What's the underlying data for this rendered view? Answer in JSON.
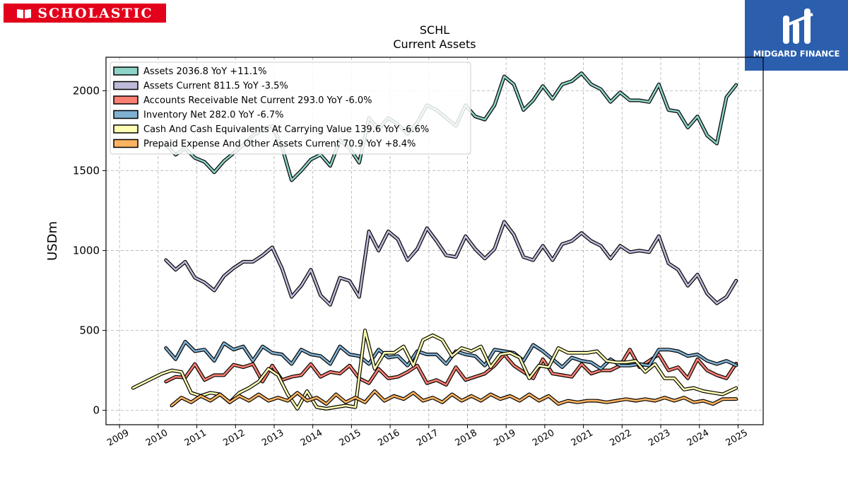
{
  "branding": {
    "left_logo": "SCHOLASTIC",
    "right_logo": "MIDGARD FINANCE"
  },
  "chart_data": {
    "type": "line",
    "title": "SCHL",
    "subtitle": "Current  Assets",
    "ylabel": "USDm",
    "xlabel": "",
    "ylim": [
      -90,
      2210
    ],
    "xlim": [
      2008.65,
      2025.65
    ],
    "y_ticks": [
      0,
      500,
      1000,
      1500,
      2000
    ],
    "x_ticks": [
      2009,
      2010,
      2011,
      2012,
      2013,
      2014,
      2015,
      2016,
      2017,
      2018,
      2019,
      2020,
      2021,
      2022,
      2023,
      2024,
      2025
    ],
    "grid": true,
    "legend_position": "top-left",
    "series": [
      {
        "name": "Assets  2036.8 YoY +11.1%",
        "color": "#8dd3c7",
        "x": [
          2010.2,
          2010.45,
          2010.7,
          2010.95,
          2011.2,
          2011.45,
          2011.7,
          2011.95,
          2012.2,
          2012.45,
          2012.7,
          2012.95,
          2013.2,
          2013.45,
          2013.7,
          2013.95,
          2014.2,
          2014.45,
          2014.7,
          2014.95,
          2015.2,
          2015.45,
          2015.7,
          2015.95,
          2016.2,
          2016.45,
          2016.7,
          2016.95,
          2017.2,
          2017.45,
          2017.7,
          2017.95,
          2018.2,
          2018.45,
          2018.7,
          2018.95,
          2019.2,
          2019.45,
          2019.7,
          2019.95,
          2020.2,
          2020.45,
          2020.7,
          2020.95,
          2021.2,
          2021.45,
          2021.7,
          2021.95,
          2022.2,
          2022.45,
          2022.7,
          2022.95,
          2023.2,
          2023.45,
          2023.7,
          2023.95,
          2024.2,
          2024.45,
          2024.7,
          2024.95
        ],
        "values": [
          1660,
          1600,
          1640,
          1580,
          1555,
          1490,
          1560,
          1610,
          1660,
          1720,
          1760,
          1780,
          1650,
          1440,
          1500,
          1570,
          1600,
          1530,
          1690,
          1640,
          1550,
          1830,
          1760,
          1830,
          1790,
          1730,
          1800,
          1910,
          1880,
          1830,
          1780,
          1910,
          1840,
          1820,
          1910,
          2090,
          2040,
          1880,
          1940,
          2030,
          1950,
          2040,
          2060,
          2110,
          2040,
          2010,
          1930,
          1990,
          1940,
          1940,
          1930,
          2040,
          1880,
          1870,
          1770,
          1840,
          1720,
          1670,
          1960,
          2036.8
        ]
      },
      {
        "name": "Assets Current  811.5 YoY -3.5%",
        "color": "#bebada",
        "x": [
          2010.2,
          2010.45,
          2010.7,
          2010.95,
          2011.2,
          2011.45,
          2011.7,
          2011.95,
          2012.2,
          2012.45,
          2012.7,
          2012.95,
          2013.2,
          2013.45,
          2013.7,
          2013.95,
          2014.2,
          2014.45,
          2014.7,
          2014.95,
          2015.2,
          2015.45,
          2015.7,
          2015.95,
          2016.2,
          2016.45,
          2016.7,
          2016.95,
          2017.2,
          2017.45,
          2017.7,
          2017.95,
          2018.2,
          2018.45,
          2018.7,
          2018.95,
          2019.2,
          2019.45,
          2019.7,
          2019.95,
          2020.2,
          2020.45,
          2020.7,
          2020.95,
          2021.2,
          2021.45,
          2021.7,
          2021.95,
          2022.2,
          2022.45,
          2022.7,
          2022.95,
          2023.2,
          2023.45,
          2023.7,
          2023.95,
          2024.2,
          2024.45,
          2024.7,
          2024.95
        ],
        "values": [
          940,
          880,
          930,
          830,
          800,
          750,
          840,
          890,
          930,
          930,
          970,
          1020,
          890,
          710,
          780,
          880,
          720,
          660,
          830,
          810,
          710,
          1120,
          1000,
          1120,
          1070,
          940,
          1010,
          1140,
          1060,
          970,
          960,
          1090,
          1010,
          950,
          1010,
          1180,
          1100,
          960,
          940,
          1030,
          940,
          1040,
          1060,
          1110,
          1060,
          1030,
          950,
          1030,
          990,
          1000,
          990,
          1090,
          920,
          880,
          780,
          850,
          730,
          670,
          710,
          811.5
        ]
      },
      {
        "name": "Accounts Receivable Net Current  293.0 YoY -6.0%",
        "color": "#fb8072",
        "x": [
          2010.2,
          2010.45,
          2010.7,
          2010.95,
          2011.2,
          2011.45,
          2011.7,
          2011.95,
          2012.2,
          2012.45,
          2012.7,
          2012.95,
          2013.2,
          2013.45,
          2013.7,
          2013.95,
          2014.2,
          2014.45,
          2014.7,
          2014.95,
          2015.2,
          2015.45,
          2015.7,
          2015.95,
          2016.2,
          2016.45,
          2016.7,
          2016.95,
          2017.2,
          2017.45,
          2017.7,
          2017.95,
          2018.2,
          2018.45,
          2018.7,
          2018.95,
          2019.2,
          2019.45,
          2019.7,
          2019.95,
          2020.2,
          2020.45,
          2020.7,
          2020.95,
          2021.2,
          2021.45,
          2021.7,
          2021.95,
          2022.2,
          2022.45,
          2022.7,
          2022.95,
          2023.2,
          2023.45,
          2023.7,
          2023.95,
          2024.2,
          2024.45,
          2024.7,
          2024.95
        ],
        "values": [
          180,
          210,
          205,
          290,
          190,
          220,
          220,
          285,
          270,
          290,
          180,
          280,
          190,
          210,
          220,
          290,
          210,
          240,
          230,
          280,
          200,
          170,
          260,
          200,
          210,
          240,
          280,
          170,
          190,
          160,
          270,
          190,
          210,
          230,
          280,
          350,
          280,
          240,
          200,
          320,
          230,
          220,
          210,
          290,
          230,
          250,
          250,
          280,
          380,
          270,
          310,
          350,
          250,
          270,
          200,
          320,
          250,
          220,
          200,
          293.0
        ]
      },
      {
        "name": "Inventory Net  282.0 YoY -6.7%",
        "color": "#80b1d3",
        "x": [
          2010.2,
          2010.45,
          2010.7,
          2010.95,
          2011.2,
          2011.45,
          2011.7,
          2011.95,
          2012.2,
          2012.45,
          2012.7,
          2012.95,
          2013.2,
          2013.45,
          2013.7,
          2013.95,
          2014.2,
          2014.45,
          2014.7,
          2014.95,
          2015.2,
          2015.45,
          2015.7,
          2015.95,
          2016.2,
          2016.45,
          2016.7,
          2016.95,
          2017.2,
          2017.45,
          2017.7,
          2017.95,
          2018.2,
          2018.45,
          2018.7,
          2018.95,
          2019.2,
          2019.45,
          2019.7,
          2019.95,
          2020.2,
          2020.45,
          2020.7,
          2020.95,
          2021.2,
          2021.45,
          2021.7,
          2021.95,
          2022.2,
          2022.45,
          2022.7,
          2022.95,
          2023.2,
          2023.45,
          2023.7,
          2023.95,
          2024.2,
          2024.45,
          2024.7,
          2024.95
        ],
        "values": [
          390,
          320,
          430,
          370,
          380,
          310,
          420,
          380,
          400,
          310,
          400,
          360,
          350,
          290,
          380,
          350,
          340,
          290,
          400,
          350,
          340,
          290,
          380,
          330,
          340,
          280,
          370,
          350,
          350,
          290,
          370,
          350,
          340,
          280,
          380,
          370,
          360,
          310,
          410,
          370,
          320,
          270,
          330,
          310,
          300,
          260,
          320,
          280,
          280,
          290,
          280,
          380,
          380,
          370,
          340,
          350,
          310,
          290,
          310,
          282.0
        ]
      },
      {
        "name": "Cash And Cash Equivalents At Carrying Value  139.6 YoY -6.6%",
        "color": "#ffffb3",
        "x": [
          2009.35,
          2009.6,
          2009.85,
          2010.1,
          2010.35,
          2010.6,
          2010.85,
          2011.1,
          2011.35,
          2011.6,
          2011.85,
          2012.1,
          2012.35,
          2012.6,
          2012.85,
          2013.1,
          2013.35,
          2013.6,
          2013.85,
          2014.1,
          2014.35,
          2014.6,
          2014.85,
          2015.1,
          2015.35,
          2015.6,
          2015.85,
          2016.1,
          2016.35,
          2016.6,
          2016.85,
          2017.1,
          2017.35,
          2017.6,
          2017.85,
          2018.1,
          2018.35,
          2018.6,
          2018.85,
          2019.1,
          2019.35,
          2019.6,
          2019.85,
          2020.1,
          2020.35,
          2020.6,
          2020.85,
          2021.1,
          2021.35,
          2021.6,
          2021.85,
          2022.1,
          2022.35,
          2022.6,
          2022.85,
          2023.1,
          2023.35,
          2023.6,
          2023.85,
          2024.1,
          2024.35,
          2024.6,
          2024.95
        ],
        "values": [
          140,
          170,
          200,
          230,
          250,
          240,
          110,
          90,
          110,
          100,
          50,
          110,
          140,
          180,
          260,
          220,
          100,
          10,
          120,
          20,
          10,
          20,
          30,
          20,
          500,
          260,
          360,
          360,
          400,
          280,
          440,
          470,
          440,
          340,
          390,
          370,
          400,
          270,
          350,
          360,
          330,
          200,
          280,
          270,
          390,
          360,
          360,
          360,
          370,
          310,
          300,
          300,
          310,
          240,
          290,
          200,
          200,
          130,
          140,
          120,
          110,
          100,
          139.6
        ]
      },
      {
        "name": "Prepaid Expense And Other Assets Current  70.9 YoY +8.4%",
        "color": "#fdb462",
        "x": [
          2010.35,
          2010.6,
          2010.85,
          2011.1,
          2011.35,
          2011.6,
          2011.85,
          2012.1,
          2012.35,
          2012.6,
          2012.85,
          2013.1,
          2013.35,
          2013.6,
          2013.85,
          2014.1,
          2014.35,
          2014.6,
          2014.85,
          2015.1,
          2015.35,
          2015.6,
          2015.85,
          2016.1,
          2016.35,
          2016.6,
          2016.85,
          2017.1,
          2017.35,
          2017.6,
          2017.85,
          2018.1,
          2018.35,
          2018.6,
          2018.85,
          2019.1,
          2019.35,
          2019.6,
          2019.85,
          2020.1,
          2020.35,
          2020.6,
          2020.85,
          2021.1,
          2021.35,
          2021.6,
          2021.85,
          2022.1,
          2022.35,
          2022.6,
          2022.85,
          2023.1,
          2023.35,
          2023.6,
          2023.85,
          2024.1,
          2024.35,
          2024.6,
          2024.95
        ],
        "values": [
          30,
          80,
          50,
          90,
          60,
          100,
          50,
          90,
          60,
          100,
          60,
          80,
          60,
          110,
          60,
          80,
          40,
          100,
          50,
          80,
          50,
          120,
          60,
          90,
          70,
          110,
          60,
          80,
          50,
          100,
          60,
          90,
          60,
          100,
          70,
          90,
          60,
          100,
          60,
          90,
          40,
          60,
          50,
          60,
          60,
          50,
          60,
          70,
          60,
          70,
          60,
          80,
          60,
          80,
          50,
          60,
          40,
          70,
          70.9
        ]
      }
    ]
  }
}
